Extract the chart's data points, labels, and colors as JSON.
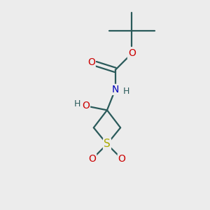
{
  "bg_color": "#ececec",
  "bond_color": "#2a5a5a",
  "atom_colors": {
    "O": "#cc0000",
    "N": "#0000bb",
    "S": "#aaaa00",
    "C": "#2a5a5a"
  },
  "figsize": [
    3.0,
    3.0
  ],
  "dpi": 100
}
